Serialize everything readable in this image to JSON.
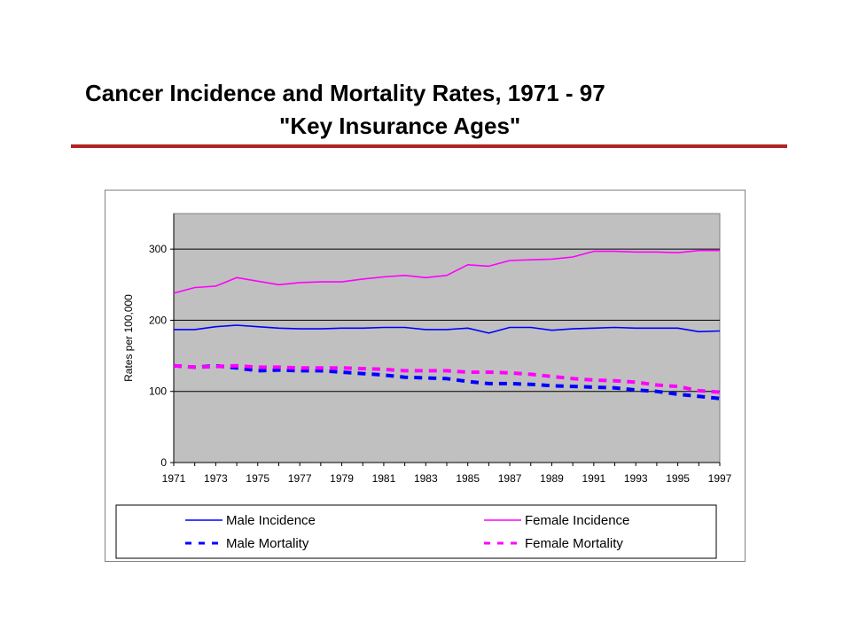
{
  "title": {
    "line1": "Cancer Incidence and Mortality Rates, 1971 - 97",
    "line2": "\"Key Insurance Ages\""
  },
  "colors": {
    "rule": "#b22222",
    "plot_bg": "#c0c0c0",
    "male": "#0000ff",
    "female": "#ff00ff"
  },
  "chart_data": {
    "type": "line",
    "title": "",
    "xlabel": "",
    "ylabel": "Rates per 100,000",
    "xlim": [
      1971,
      1997
    ],
    "ylim": [
      0,
      350
    ],
    "yticks": [
      0,
      100,
      200,
      300
    ],
    "xticks": [
      1971,
      1973,
      1975,
      1977,
      1979,
      1981,
      1983,
      1985,
      1987,
      1989,
      1991,
      1993,
      1995,
      1997
    ],
    "grid": "horizontal",
    "legend_position": "bottom",
    "x": [
      1971,
      1972,
      1973,
      1974,
      1975,
      1976,
      1977,
      1978,
      1979,
      1980,
      1981,
      1982,
      1983,
      1984,
      1985,
      1986,
      1987,
      1988,
      1989,
      1990,
      1991,
      1992,
      1993,
      1994,
      1995,
      1996,
      1997
    ],
    "series": [
      {
        "name": "Male Incidence",
        "style": "solid",
        "color": "#0000ff",
        "values": [
          187,
          187,
          191,
          193,
          191,
          189,
          188,
          188,
          189,
          189,
          190,
          190,
          187,
          187,
          189,
          182,
          190,
          190,
          186,
          188,
          189,
          190,
          189,
          189,
          189,
          184,
          185
        ]
      },
      {
        "name": "Female Incidence",
        "style": "solid",
        "color": "#ff00ff",
        "values": [
          238,
          246,
          248,
          260,
          255,
          250,
          253,
          254,
          254,
          258,
          261,
          263,
          260,
          263,
          278,
          276,
          284,
          285,
          286,
          289,
          297,
          297,
          296,
          296,
          295,
          298,
          298
        ]
      },
      {
        "name": "Male Mortality",
        "style": "dashed",
        "color": "#0000ff",
        "values": [
          136,
          134,
          136,
          133,
          129,
          130,
          129,
          129,
          127,
          125,
          123,
          120,
          119,
          118,
          114,
          111,
          111,
          110,
          108,
          107,
          106,
          105,
          102,
          100,
          96,
          93,
          90
        ]
      },
      {
        "name": "Female Mortality",
        "style": "dashed",
        "color": "#ff00ff",
        "values": [
          136,
          134,
          135,
          136,
          134,
          134,
          133,
          133,
          133,
          132,
          131,
          129,
          129,
          129,
          127,
          127,
          126,
          124,
          121,
          118,
          116,
          115,
          113,
          109,
          107,
          101,
          99
        ]
      }
    ]
  }
}
